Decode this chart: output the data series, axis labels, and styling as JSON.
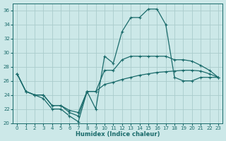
{
  "xlabel": "Humidex (Indice chaleur)",
  "bg_color": "#cce8e8",
  "grid_color": "#aacccc",
  "line_color": "#1a6b6b",
  "xlim": [
    -0.5,
    23.5
  ],
  "ylim": [
    20,
    37
  ],
  "xticks": [
    0,
    1,
    2,
    3,
    4,
    5,
    6,
    7,
    8,
    9,
    10,
    11,
    12,
    13,
    14,
    15,
    16,
    17,
    18,
    19,
    20,
    21,
    22,
    23
  ],
  "yticks": [
    20,
    22,
    24,
    26,
    28,
    30,
    32,
    34,
    36
  ],
  "line1_x": [
    0,
    1,
    2,
    3,
    4,
    5,
    6,
    7,
    8,
    9,
    10,
    11,
    12,
    13,
    14,
    15,
    16,
    17,
    18,
    19,
    20,
    21,
    22,
    23
  ],
  "line1_y": [
    27.0,
    24.5,
    24.0,
    23.5,
    22.0,
    22.0,
    21.0,
    20.2,
    24.5,
    22.0,
    29.5,
    28.5,
    33.0,
    35.0,
    35.0,
    36.2,
    36.2,
    34.0,
    26.5,
    26.0,
    26.0,
    26.5,
    26.5,
    26.5
  ],
  "line2_x": [
    0,
    1,
    2,
    3,
    4,
    5,
    6,
    7,
    8,
    9,
    10,
    11,
    12,
    13,
    14,
    15,
    16,
    17,
    18,
    19,
    20,
    21,
    22,
    23
  ],
  "line2_y": [
    27.0,
    24.5,
    24.0,
    24.0,
    22.5,
    22.5,
    21.5,
    21.0,
    24.5,
    24.5,
    27.5,
    27.5,
    29.0,
    29.5,
    29.5,
    29.5,
    29.5,
    29.5,
    29.0,
    29.0,
    28.8,
    28.2,
    27.5,
    26.5
  ],
  "line3_x": [
    0,
    1,
    2,
    3,
    4,
    5,
    6,
    7,
    8,
    9,
    10,
    11,
    12,
    13,
    14,
    15,
    16,
    17,
    18,
    19,
    20,
    21,
    22,
    23
  ],
  "line3_y": [
    27.0,
    24.5,
    24.0,
    24.0,
    22.5,
    22.5,
    21.8,
    21.5,
    24.5,
    24.5,
    25.5,
    25.8,
    26.2,
    26.5,
    26.8,
    27.0,
    27.2,
    27.3,
    27.4,
    27.5,
    27.5,
    27.4,
    27.0,
    26.5
  ]
}
